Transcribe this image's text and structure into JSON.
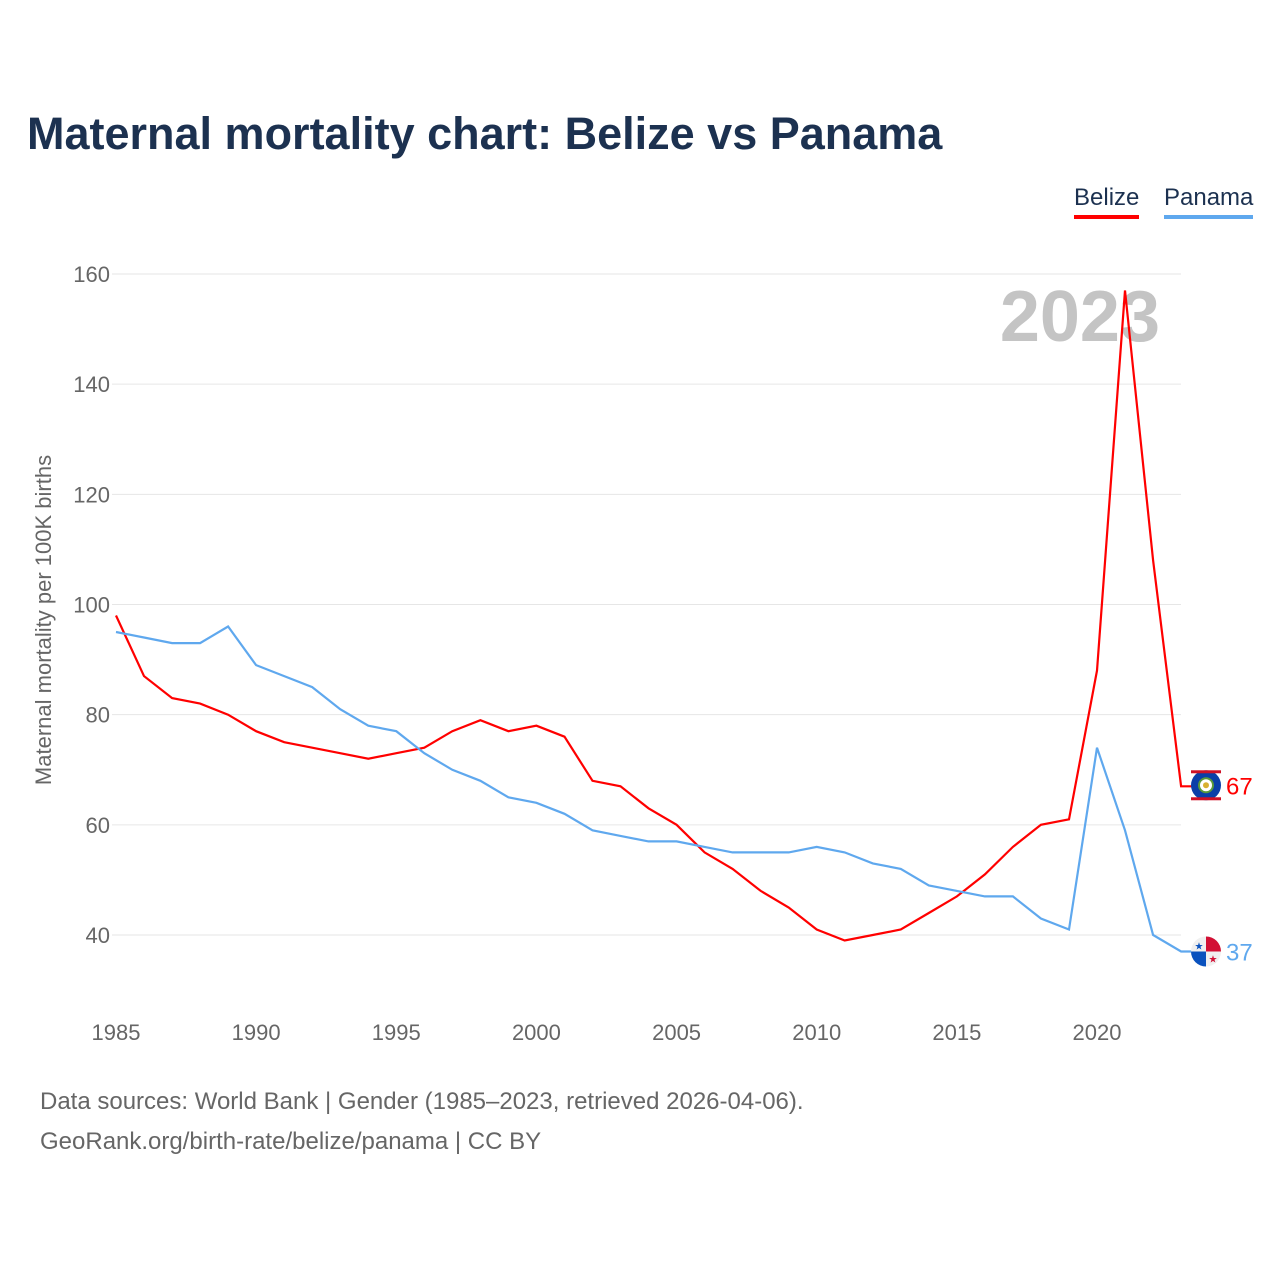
{
  "title": "Maternal mortality chart: Belize vs Panama",
  "sources": [
    "Data sources: World Bank | Gender (1985–2023, retrieved 2026-04-06).",
    "GeoRank.org/birth-rate/belize/panama | CC BY"
  ],
  "chart_data": {
    "type": "line",
    "title": "Maternal mortality chart: Belize vs Panama",
    "ylabel": "Maternal mortality per 100K births",
    "xlabel": "",
    "year_watermark": "2023",
    "ylim": [
      28,
      168
    ],
    "xlim": [
      1985,
      2023
    ],
    "yticks": [
      40,
      60,
      80,
      100,
      120,
      140,
      160
    ],
    "xticks": [
      1985,
      1990,
      1995,
      2000,
      2005,
      2010,
      2015,
      2020
    ],
    "grid": true,
    "legend_position": "top-right",
    "x": [
      1985,
      1986,
      1987,
      1988,
      1989,
      1990,
      1991,
      1992,
      1993,
      1994,
      1995,
      1996,
      1997,
      1998,
      1999,
      2000,
      2001,
      2002,
      2003,
      2004,
      2005,
      2006,
      2007,
      2008,
      2009,
      2010,
      2011,
      2012,
      2013,
      2014,
      2015,
      2016,
      2017,
      2018,
      2019,
      2020,
      2021,
      2022,
      2023
    ],
    "series": [
      {
        "name": "Belize",
        "color": "#ff0000",
        "end_label": "67",
        "values": [
          98,
          87,
          83,
          82,
          80,
          77,
          75,
          74,
          73,
          72,
          73,
          74,
          77,
          79,
          77,
          78,
          76,
          68,
          67,
          63,
          60,
          55,
          52,
          48,
          45,
          41,
          39,
          40,
          41,
          44,
          47,
          51,
          56,
          60,
          61,
          88,
          157,
          108,
          67
        ]
      },
      {
        "name": "Panama",
        "color": "#5fa8ee",
        "end_label": "37",
        "values": [
          95,
          94,
          93,
          93,
          96,
          89,
          87,
          85,
          81,
          78,
          77,
          73,
          70,
          68,
          65,
          64,
          62,
          59,
          58,
          57,
          57,
          56,
          55,
          55,
          55,
          56,
          55,
          53,
          52,
          49,
          48,
          47,
          47,
          43,
          41,
          74,
          59,
          40,
          37
        ]
      }
    ]
  }
}
